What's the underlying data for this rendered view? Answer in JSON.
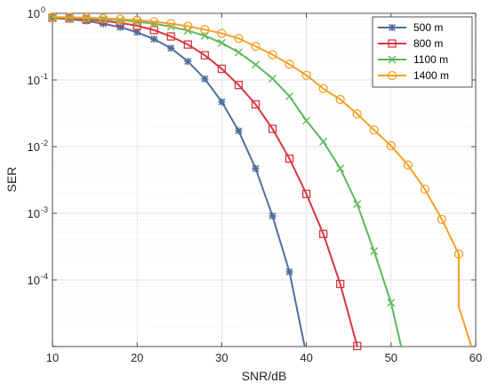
{
  "chart_data": {
    "type": "line",
    "xlabel": "SNR/dB",
    "ylabel": "SER",
    "xlim": [
      10,
      60
    ],
    "ylim": [
      1e-05,
      1
    ],
    "yscale": "log",
    "grid": true,
    "legend_position": "top-right",
    "x_ticks": [
      10,
      20,
      30,
      40,
      50,
      60
    ],
    "y_ticks": [
      {
        "value": 1,
        "base": "10",
        "exp": "0"
      },
      {
        "value": 0.1,
        "base": "10",
        "exp": "-1"
      },
      {
        "value": 0.01,
        "base": "10",
        "exp": "-2"
      },
      {
        "value": 0.001,
        "base": "10",
        "exp": "-3"
      },
      {
        "value": 0.0001,
        "base": "10",
        "exp": "-4"
      }
    ],
    "series": [
      {
        "name": "500 m",
        "color": "#4f6f9b",
        "marker": "asterisk",
        "x": [
          10,
          12,
          14,
          16,
          18,
          20,
          22,
          24,
          26,
          28,
          30,
          32,
          34,
          36,
          38
        ],
        "y": [
          0.85,
          0.82,
          0.77,
          0.7,
          0.62,
          0.52,
          0.41,
          0.3,
          0.19,
          0.104,
          0.047,
          0.0172,
          0.0047,
          0.00091,
          0.000132
        ],
        "end": [
          39.8,
          1e-05
        ]
      },
      {
        "name": "800 m",
        "color": "#d9363e",
        "marker": "square",
        "x": [
          10,
          12,
          14,
          16,
          18,
          20,
          22,
          24,
          26,
          28,
          30,
          32,
          34,
          36,
          38,
          40,
          42,
          44,
          46
        ],
        "y": [
          0.86,
          0.84,
          0.81,
          0.77,
          0.72,
          0.65,
          0.56,
          0.45,
          0.34,
          0.235,
          0.147,
          0.084,
          0.043,
          0.0185,
          0.0066,
          0.00195,
          0.00049,
          8.7e-05,
          1.02e-05
        ]
      },
      {
        "name": "1100 m",
        "color": "#5cb85c",
        "marker": "x",
        "x": [
          10,
          12,
          14,
          16,
          18,
          20,
          22,
          24,
          26,
          28,
          30,
          32,
          34,
          36,
          38,
          40,
          42,
          44,
          46,
          48,
          50
        ],
        "y": [
          0.87,
          0.86,
          0.84,
          0.82,
          0.79,
          0.75,
          0.7,
          0.63,
          0.55,
          0.46,
          0.36,
          0.26,
          0.17,
          0.105,
          0.057,
          0.0245,
          0.0119,
          0.0047,
          0.00137,
          0.00027,
          4.55e-05
        ],
        "end": [
          51.2,
          1e-05
        ]
      },
      {
        "name": "1400 m",
        "color": "#f5a028",
        "marker": "circle",
        "x": [
          10,
          12,
          14,
          16,
          18,
          20,
          22,
          24,
          26,
          28,
          30,
          32,
          34,
          36,
          38,
          40,
          42,
          44,
          46,
          48,
          50,
          52,
          54,
          56,
          58
        ],
        "y": [
          0.88,
          0.87,
          0.86,
          0.84,
          0.82,
          0.79,
          0.75,
          0.7,
          0.64,
          0.57,
          0.5,
          0.42,
          0.32,
          0.24,
          0.172,
          0.118,
          0.074,
          0.051,
          0.031,
          0.0177,
          0.0103,
          0.0053,
          0.0023,
          0.00081,
          0.000245
        ],
        "extra": [
          58,
          4e-05
        ],
        "end": [
          59.5,
          1e-05
        ]
      }
    ]
  }
}
